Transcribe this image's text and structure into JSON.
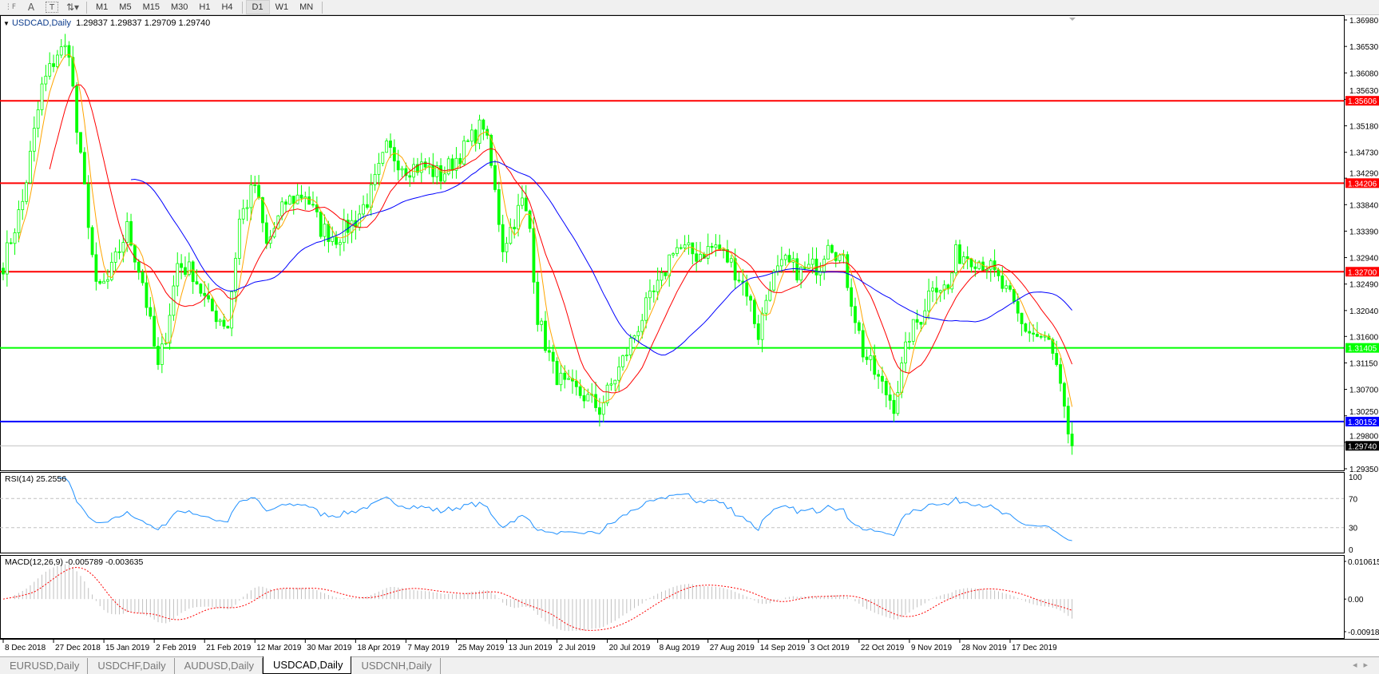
{
  "toolbar": {
    "icons": [
      "period-separator-icon",
      "text-icon",
      "text-label-icon",
      "arrows-icon"
    ],
    "timeframes": [
      "M1",
      "M5",
      "M15",
      "M30",
      "H1",
      "H4",
      "D1",
      "W1",
      "MN"
    ],
    "active_timeframe": "D1"
  },
  "chart": {
    "symbol_label": "USDCAD,Daily",
    "ohlc": "1.29837 1.29837 1.29709 1.29740",
    "price_ticks": [
      "1.36980",
      "1.36530",
      "1.36080",
      "1.35630",
      "1.35180",
      "1.34730",
      "1.34290",
      "1.33840",
      "1.33390",
      "1.32940",
      "1.32490",
      "1.32040",
      "1.31600",
      "1.31150",
      "1.30700",
      "1.30250",
      "1.29800",
      "1.29350"
    ],
    "price_range": [
      1.2935,
      1.3698
    ],
    "horizontal_lines": [
      {
        "price": 1.35606,
        "label": "1.35606",
        "color": "#ff0000"
      },
      {
        "price": 1.34206,
        "label": "1.34206",
        "color": "#ff0000"
      },
      {
        "price": 1.327,
        "label": "1.32700",
        "color": "#ff0000"
      },
      {
        "price": 1.31405,
        "label": "1.31405",
        "color": "#00ff00"
      },
      {
        "price": 1.30152,
        "label": "1.30152",
        "color": "#0000ff"
      }
    ],
    "bid": {
      "price": 1.2974,
      "label": "1.29740",
      "color": "#000000"
    },
    "candle_color": "#00ff00",
    "moving_averages": [
      {
        "color": "#ffa500"
      },
      {
        "color": "#ff0000"
      },
      {
        "color": "#0000ff"
      }
    ],
    "date_labels": [
      "8 Dec 2018",
      "27 Dec 2018",
      "15 Jan 2019",
      "2 Feb 2019",
      "21 Feb 2019",
      "12 Mar 2019",
      "30 Mar 2019",
      "18 Apr 2019",
      "7 May 2019",
      "25 May 2019",
      "13 Jun 2019",
      "2 Jul 2019",
      "20 Jul 2019",
      "8 Aug 2019",
      "27 Aug 2019",
      "14 Sep 2019",
      "3 Oct 2019",
      "22 Oct 2019",
      "9 Nov 2019",
      "28 Nov 2019",
      "17 Dec 2019"
    ],
    "approx_closes": [
      [
        0,
        1.32836
      ],
      [
        5,
        1.33883
      ],
      [
        10,
        1.35828
      ],
      [
        14,
        1.36427
      ],
      [
        17,
        1.36501
      ],
      [
        19,
        1.3508
      ],
      [
        22,
        1.33584
      ],
      [
        24,
        1.32387
      ],
      [
        27,
        1.32537
      ],
      [
        32,
        1.33435
      ],
      [
        36,
        1.32537
      ],
      [
        40,
        1.31041
      ],
      [
        42,
        1.31639
      ],
      [
        45,
        1.32836
      ],
      [
        49,
        1.32687
      ],
      [
        53,
        1.32088
      ],
      [
        58,
        1.31789
      ],
      [
        61,
        1.33584
      ],
      [
        65,
        1.34183
      ],
      [
        68,
        1.33135
      ],
      [
        73,
        1.33883
      ],
      [
        78,
        1.34033
      ],
      [
        82,
        1.33435
      ],
      [
        86,
        1.33285
      ],
      [
        91,
        1.33584
      ],
      [
        95,
        1.34033
      ],
      [
        99,
        1.34781
      ],
      [
        104,
        1.34482
      ],
      [
        109,
        1.34482
      ],
      [
        113,
        1.34332
      ],
      [
        119,
        1.34781
      ],
      [
        124,
        1.3523
      ],
      [
        126,
        1.34482
      ],
      [
        129,
        1.33135
      ],
      [
        134,
        1.33883
      ],
      [
        136,
        1.33435
      ],
      [
        138,
        1.31938
      ],
      [
        142,
        1.31041
      ],
      [
        145,
        1.30742
      ],
      [
        150,
        1.30592
      ],
      [
        154,
        1.30368
      ],
      [
        159,
        1.31041
      ],
      [
        162,
        1.3149
      ],
      [
        166,
        1.32088
      ],
      [
        170,
        1.32537
      ],
      [
        173,
        1.33135
      ],
      [
        179,
        1.32986
      ],
      [
        184,
        1.33135
      ],
      [
        188,
        1.32836
      ],
      [
        192,
        1.32387
      ],
      [
        195,
        1.31639
      ],
      [
        198,
        1.32537
      ],
      [
        202,
        1.32836
      ],
      [
        206,
        1.32687
      ],
      [
        211,
        1.32836
      ],
      [
        213,
        1.33285
      ],
      [
        217,
        1.32836
      ],
      [
        219,
        1.32238
      ],
      [
        222,
        1.3134
      ],
      [
        227,
        1.30742
      ],
      [
        230,
        1.30443
      ],
      [
        234,
        1.31639
      ],
      [
        237,
        1.31938
      ],
      [
        240,
        1.32537
      ],
      [
        244,
        1.32387
      ],
      [
        246,
        1.32986
      ],
      [
        249,
        1.32986
      ],
      [
        254,
        1.32836
      ],
      [
        257,
        1.32537
      ],
      [
        260,
        1.32238
      ],
      [
        263,
        1.31789
      ],
      [
        266,
        1.31639
      ],
      [
        270,
        1.3149
      ],
      [
        272,
        1.31041
      ],
      [
        274,
        1.30293
      ],
      [
        275,
        1.2977
      ],
      [
        276,
        1.2974
      ]
    ]
  },
  "rsi": {
    "label": "RSI(14) 25.2556",
    "ticks": [
      "100",
      "70",
      "30",
      "0"
    ],
    "levels": [
      70,
      30
    ],
    "color": "#1e90ff"
  },
  "macd": {
    "label": "MACD(12,26,9) -0.005789 -0.003635",
    "ticks": [
      "0.010615",
      "0.00",
      "-0.009181"
    ],
    "range": [
      -0.009181,
      0.010615
    ],
    "histogram_color": "#c0c0c0",
    "signal_color": "#ff0000"
  },
  "tabs": [
    {
      "label": "EURUSD,Daily"
    },
    {
      "label": "USDCHF,Daily"
    },
    {
      "label": "AUDUSD,Daily"
    },
    {
      "label": "USDCAD,Daily",
      "active": true
    },
    {
      "label": "USDCNH,Daily"
    }
  ]
}
